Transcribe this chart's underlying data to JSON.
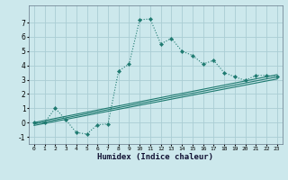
{
  "xlabel": "Humidex (Indice chaleur)",
  "background_color": "#cce8ec",
  "grid_color": "#aacdd4",
  "line_color": "#1e7a70",
  "xlim": [
    -0.5,
    23.5
  ],
  "ylim": [
    -1.5,
    8.2
  ],
  "x_ticks": [
    0,
    1,
    2,
    3,
    4,
    5,
    6,
    7,
    8,
    9,
    10,
    11,
    12,
    13,
    14,
    15,
    16,
    17,
    18,
    19,
    20,
    21,
    22,
    23
  ],
  "y_ticks": [
    -1,
    0,
    1,
    2,
    3,
    4,
    5,
    6,
    7
  ],
  "dotted_series": {
    "x": [
      0,
      1,
      2,
      3,
      4,
      5,
      6,
      7,
      8,
      9,
      10,
      11,
      12,
      13,
      14,
      15,
      16,
      17,
      18,
      19,
      20,
      21,
      22,
      23
    ],
    "y": [
      0,
      0,
      1,
      0.2,
      -0.7,
      -0.8,
      -0.15,
      -0.1,
      3.6,
      4.1,
      7.2,
      7.25,
      5.5,
      5.9,
      5.0,
      4.7,
      4.1,
      4.35,
      3.5,
      3.2,
      2.95,
      3.3,
      3.3,
      3.2
    ]
  },
  "line_series": [
    {
      "x": [
        0,
        23
      ],
      "y": [
        0.0,
        3.35
      ]
    },
    {
      "x": [
        0,
        23
      ],
      "y": [
        -0.1,
        3.2
      ]
    },
    {
      "x": [
        0,
        23
      ],
      "y": [
        -0.2,
        3.05
      ]
    }
  ]
}
